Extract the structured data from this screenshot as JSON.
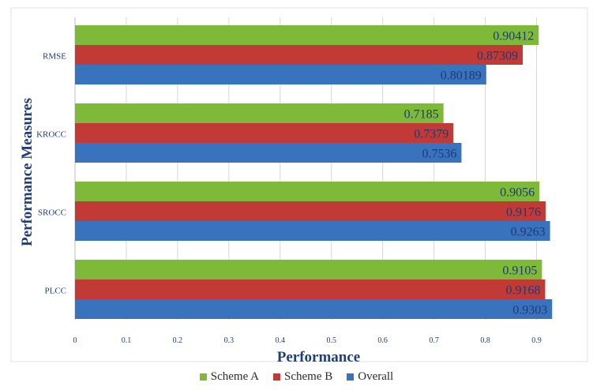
{
  "chart_data": {
    "type": "bar",
    "orientation": "horizontal",
    "categories": [
      "RMSE",
      "KROCC",
      "SROCC",
      "PLCC"
    ],
    "series": [
      {
        "name": "Scheme A",
        "color": "#7fb939",
        "values": [
          0.90412,
          0.7185,
          0.9056,
          0.9105
        ],
        "labels": [
          "0.90412",
          "0.7185",
          "0.9056",
          "0.9105"
        ]
      },
      {
        "name": "Scheme B",
        "color": "#c23a35",
        "values": [
          0.87309,
          0.7379,
          0.9176,
          0.9168
        ],
        "labels": [
          "0.87309",
          "0.7379",
          "0.9176",
          "0.9168"
        ]
      },
      {
        "name": "Overall",
        "color": "#3a73bd",
        "values": [
          0.80189,
          0.7536,
          0.9263,
          0.9303
        ],
        "labels": [
          "0.80189",
          "0.7536",
          "0.9263",
          "0.9303"
        ]
      }
    ],
    "xlabel": "Performance",
    "ylabel": "Performance Measures",
    "xlim": [
      0,
      0.95
    ],
    "xticks": [
      "0",
      "0.1",
      "0.2",
      "0.3",
      "0.4",
      "0.5",
      "0.6",
      "0.7",
      "0.8",
      "0.9"
    ],
    "grid": "vertical",
    "legend_position": "bottom"
  }
}
